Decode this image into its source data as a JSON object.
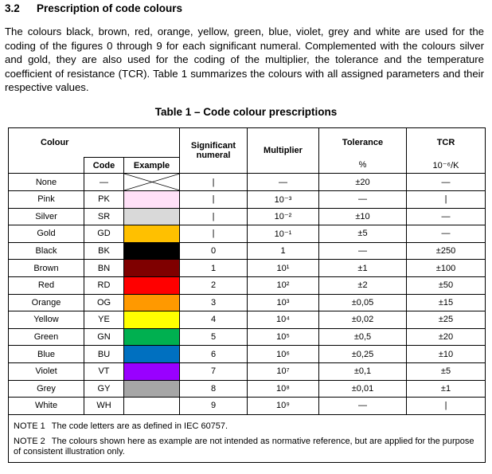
{
  "section": {
    "number": "3.2",
    "title": "Prescription of code colours"
  },
  "paragraph": "The colours black, brown, red, orange, yellow, green, blue, violet, grey and white are used for the coding of the figures 0 through 9 for each significant numeral. Complemented with the colours silver and gold, they are also used for the coding of the multiplier, the tolerance and the temperature coefficient of resistance (TCR). Table 1 summarizes the colours with all assigned parameters and their respective values.",
  "table": {
    "caption": "Table 1 – Code colour prescriptions",
    "header": {
      "colour": "Colour",
      "code": "Code",
      "example": "Example",
      "numeral": "Significant numeral",
      "multiplier": "Multiplier",
      "tolerance": "Tolerance",
      "tolerance_unit": "%",
      "tcr": "TCR",
      "tcr_unit": "10⁻⁶/K"
    },
    "rows": [
      {
        "name": "None",
        "code": "—",
        "example": null,
        "numeral": "|",
        "multiplier": "—",
        "tolerance": "±20",
        "tcr": "—"
      },
      {
        "name": "Pink",
        "code": "PK",
        "example": "#ffe0f7",
        "numeral": "|",
        "multiplier": "10⁻³",
        "tolerance": "—",
        "tcr": "|"
      },
      {
        "name": "Silver",
        "code": "SR",
        "example": "#d9d9d9",
        "numeral": "|",
        "multiplier": "10⁻²",
        "tolerance": "±10",
        "tcr": "—"
      },
      {
        "name": "Gold",
        "code": "GD",
        "example": "#ffc000",
        "numeral": "|",
        "multiplier": "10⁻¹",
        "tolerance": "±5",
        "tcr": "—"
      },
      {
        "name": "Black",
        "code": "BK",
        "example": "#000000",
        "numeral": 0,
        "multiplier": 1,
        "tolerance": "—",
        "tcr": "±250"
      },
      {
        "name": "Brown",
        "code": "BN",
        "example": "#7f0000",
        "numeral": 1,
        "multiplier": "10¹",
        "tolerance": "±1",
        "tcr": "±100"
      },
      {
        "name": "Red",
        "code": "RD",
        "example": "#ff0000",
        "numeral": 2,
        "multiplier": "10²",
        "tolerance": "±2",
        "tcr": "±50"
      },
      {
        "name": "Orange",
        "code": "OG",
        "example": "#ff9900",
        "numeral": 3,
        "multiplier": "10³",
        "tolerance": "±0,05",
        "tcr": "±15"
      },
      {
        "name": "Yellow",
        "code": "YE",
        "example": "#ffff00",
        "numeral": 4,
        "multiplier": "10⁴",
        "tolerance": "±0,02",
        "tcr": "±25"
      },
      {
        "name": "Green",
        "code": "GN",
        "example": "#00b050",
        "numeral": 5,
        "multiplier": "10⁵",
        "tolerance": "±0,5",
        "tcr": "±20"
      },
      {
        "name": "Blue",
        "code": "BU",
        "example": "#0070c0",
        "numeral": 6,
        "multiplier": "10⁶",
        "tolerance": "±0,25",
        "tcr": "±10"
      },
      {
        "name": "Violet",
        "code": "VT",
        "example": "#9900ff",
        "numeral": 7,
        "multiplier": "10⁷",
        "tolerance": "±0,1",
        "tcr": "±5"
      },
      {
        "name": "Grey",
        "code": "GY",
        "example": "#a6a6a6",
        "numeral": 8,
        "multiplier": "10⁸",
        "tolerance": "±0,01",
        "tcr": "±1"
      },
      {
        "name": "White",
        "code": "WH",
        "example": "#ffffff",
        "numeral": 9,
        "multiplier": "10⁹",
        "tolerance": "—",
        "tcr": "|"
      }
    ]
  },
  "notes": [
    {
      "label": "NOTE 1",
      "text": "The code letters are as defined in IEC 60757."
    },
    {
      "label": "NOTE 2",
      "text": "The colours shown here as example are not intended as normative reference, but are applied for the purpose of consistent illustration only."
    }
  ]
}
